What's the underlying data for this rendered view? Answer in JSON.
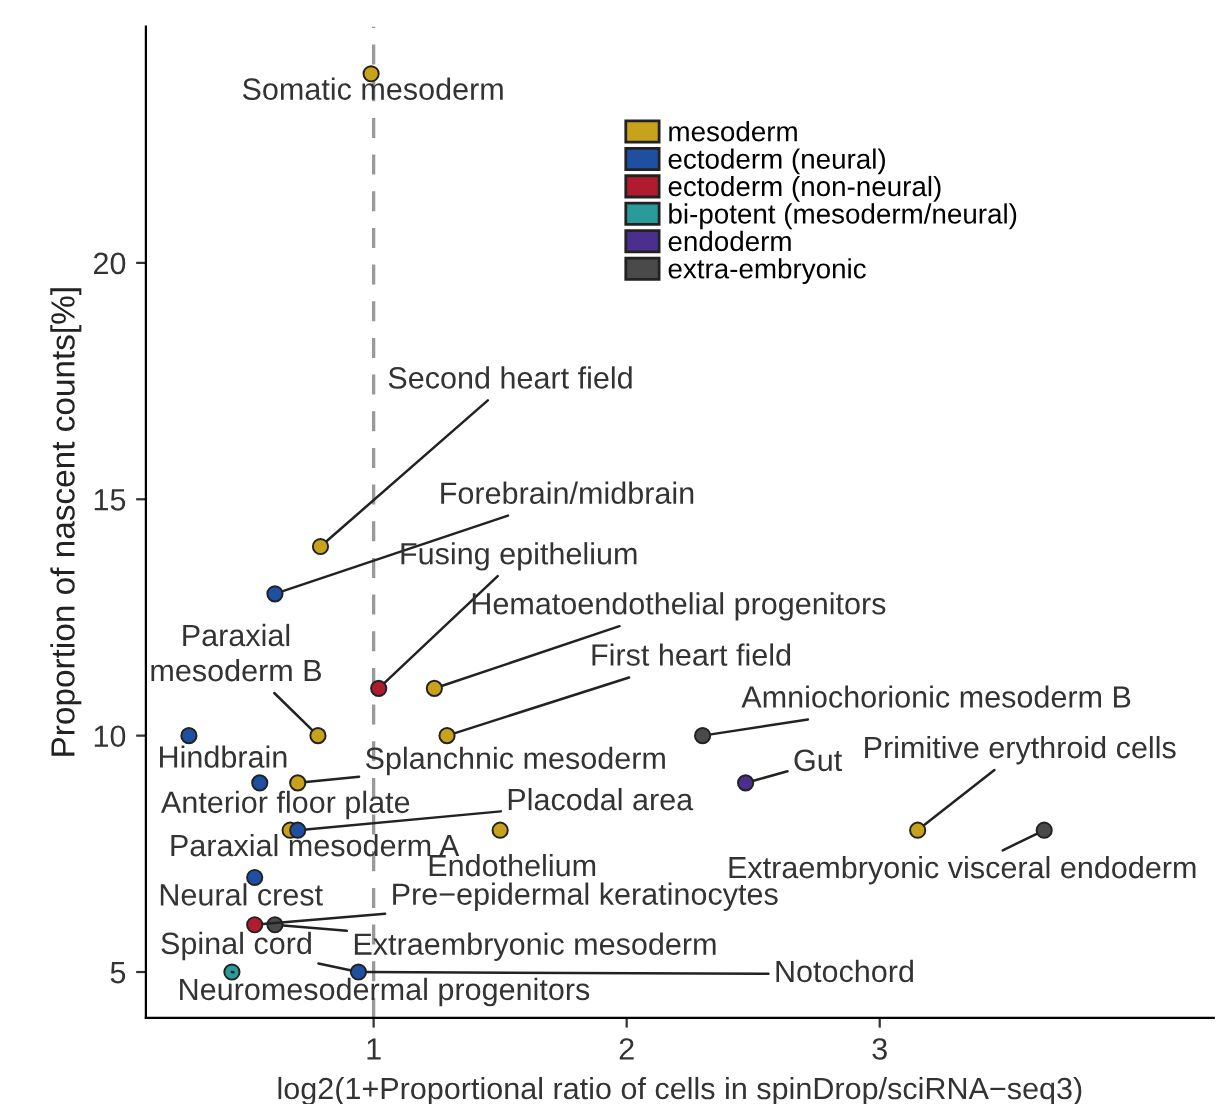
{
  "chart_data": {
    "type": "scatter",
    "xlabel": "log2(1+Proportional ratio of cells in spinDrop/sciRNA−seq3)",
    "ylabel": "Proportion of nascent counts[%]",
    "xlim": [
      0.1,
      4.32
    ],
    "ylim": [
      4.03,
      25
    ],
    "xticks": [
      1,
      2,
      3
    ],
    "yticks": [
      5,
      10,
      15,
      20
    ],
    "grid": false,
    "legend": "top right",
    "marker": "circle",
    "ref_lines": [
      {
        "axis": "x",
        "value": 1,
        "color": "#999999",
        "line_style": "dashed"
      }
    ],
    "series": [
      {
        "name": "mesoderm",
        "color": "#c8a21a",
        "x": [
          0.99,
          0.79,
          1.24,
          0.78,
          1.29,
          0.7,
          0.67,
          1.5,
          3.15
        ],
        "values": [
          24.0,
          14.0,
          11.0,
          10.0,
          10.0,
          9.0,
          8.0,
          8.0,
          8.0
        ]
      },
      {
        "name": "ectoderm (neural)",
        "color": "#1f4fa0",
        "x": [
          0.61,
          0.27,
          0.55,
          0.7,
          0.53,
          0.94
        ],
        "values": [
          13.0,
          10.0,
          9.0,
          8.0,
          7.0,
          5.0
        ]
      },
      {
        "name": "ectoderm (non-neural)",
        "color": "#b01c2e",
        "x": [
          1.02,
          0.53
        ],
        "values": [
          11.0,
          6.0
        ]
      },
      {
        "name": "bi-potent (mesoderm/neural)",
        "color": "#2a9a9a",
        "x": [
          0.44
        ],
        "values": [
          5.0
        ]
      },
      {
        "name": "endoderm",
        "color": "#4b2f8f",
        "x": [
          2.47
        ],
        "values": [
          9.0
        ]
      },
      {
        "name": "extra-embryonic",
        "color": "#4a4a4a",
        "x": [
          2.3,
          3.65,
          0.61
        ],
        "values": [
          10.0,
          8.0,
          6.0
        ]
      }
    ],
    "annotations": [
      {
        "text": "Somatic mesoderm",
        "x": 0.99,
        "y": 24.0
      },
      {
        "text": "Second heart field",
        "x": 0.79,
        "y": 14.0
      },
      {
        "text": "Forebrain/midbrain",
        "x": 0.61,
        "y": 13.0
      },
      {
        "text": "Fusing epithelium",
        "x": 1.02,
        "y": 11.0
      },
      {
        "text": "Hematoendothelial progenitors",
        "x": 1.24,
        "y": 11.0
      },
      {
        "text": "First heart field",
        "x": 1.29,
        "y": 10.0
      },
      {
        "text": "Paraxial\nmesoderm B",
        "x": 0.78,
        "y": 10.0
      },
      {
        "text": "Hindbrain",
        "x": 0.27,
        "y": 10.0
      },
      {
        "text": "Amniochorionic mesoderm B",
        "x": 2.3,
        "y": 10.0
      },
      {
        "text": "Gut",
        "x": 2.47,
        "y": 9.0
      },
      {
        "text": "Primitive erythroid cells",
        "x": 3.15,
        "y": 8.0
      },
      {
        "text": "Extraembryonic visceral endoderm",
        "x": 3.65,
        "y": 8.0
      },
      {
        "text": "Splanchnic mesoderm",
        "x": 0.7,
        "y": 9.0
      },
      {
        "text": "Anterior floor plate",
        "x": 0.55,
        "y": 9.0
      },
      {
        "text": "Placodal area",
        "x": 0.7,
        "y": 8.0
      },
      {
        "text": "Paraxial mesoderm A",
        "x": 0.67,
        "y": 8.0
      },
      {
        "text": "Endothelium",
        "x": 1.5,
        "y": 8.0
      },
      {
        "text": "Neural crest",
        "x": 0.53,
        "y": 7.0
      },
      {
        "text": "Pre−epidermal keratinocytes",
        "x": 0.53,
        "y": 6.0
      },
      {
        "text": "Extraembryonic mesoderm",
        "x": 0.61,
        "y": 6.0
      },
      {
        "text": "Spinal cord",
        "x": 0.94,
        "y": 5.0
      },
      {
        "text": "Neuromesodermal progenitors",
        "x": 0.44,
        "y": 5.0
      },
      {
        "text": "Notochord",
        "x": 0.94,
        "y": 5.0
      }
    ]
  }
}
